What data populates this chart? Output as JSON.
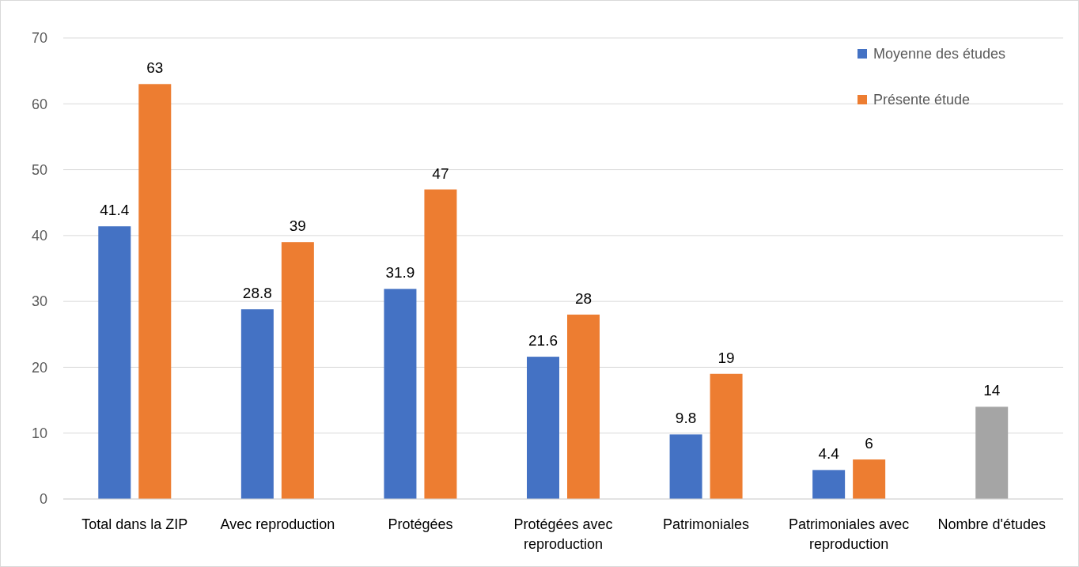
{
  "chart_data": {
    "type": "bar",
    "categories": [
      "Total dans la ZIP",
      "Avec reproduction",
      "Protégées",
      "Protégées avec reproduction",
      "Patrimoniales",
      "Patrimoniales avec reproduction",
      "Nombre d'études"
    ],
    "series": [
      {
        "name": "Moyenne des études",
        "color": "#4472c4",
        "values": [
          41.4,
          28.8,
          31.9,
          21.6,
          9.8,
          4.4,
          null
        ]
      },
      {
        "name": "Présente étude",
        "color": "#ed7d31",
        "values": [
          63,
          39,
          47,
          28,
          19,
          6,
          null
        ]
      },
      {
        "color": "#a5a5a5",
        "values": [
          null,
          null,
          null,
          null,
          null,
          null,
          14
        ]
      }
    ],
    "ylim": [
      0,
      70
    ],
    "yticks": [
      0,
      10,
      20,
      30,
      40,
      50,
      60,
      70
    ],
    "grid": "y",
    "legend": "top right",
    "data_labels": true
  }
}
